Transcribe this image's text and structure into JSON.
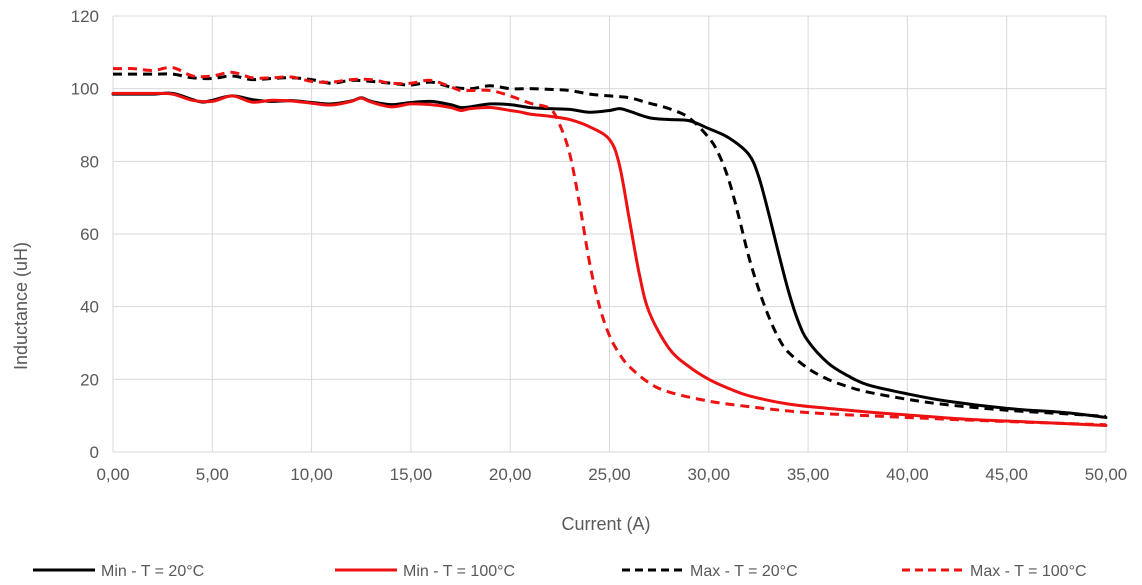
{
  "chart_data": {
    "type": "line",
    "xlabel": "Current (A)",
    "ylabel": "Inductance (uH)",
    "xlim": [
      0,
      50
    ],
    "ylim": [
      0,
      120
    ],
    "x_ticks": [
      0,
      5,
      10,
      15,
      20,
      25,
      30,
      35,
      40,
      45,
      50
    ],
    "x_tick_labels": [
      "0,00",
      "5,00",
      "10,00",
      "15,00",
      "20,00",
      "25,00",
      "30,00",
      "35,00",
      "40,00",
      "45,00",
      "50,00"
    ],
    "y_ticks": [
      0,
      20,
      40,
      60,
      80,
      100,
      120
    ],
    "y_tick_labels": [
      "0",
      "20",
      "40",
      "60",
      "80",
      "100",
      "120"
    ],
    "grid": true,
    "legend_position": "bottom",
    "series": [
      {
        "name": "Min - T = 20°C",
        "color": "#000000",
        "dash": "solid",
        "points": [
          [
            0,
            98.5
          ],
          [
            1,
            98.5
          ],
          [
            2,
            98.5
          ],
          [
            3,
            98.7
          ],
          [
            4,
            97.0
          ],
          [
            4.5,
            96.3
          ],
          [
            5,
            96.8
          ],
          [
            6,
            98.0
          ],
          [
            7,
            97.0
          ],
          [
            8,
            96.5
          ],
          [
            9,
            96.7
          ],
          [
            10,
            96.2
          ],
          [
            11,
            95.8
          ],
          [
            12,
            96.6
          ],
          [
            12.5,
            97.5
          ],
          [
            13,
            96.5
          ],
          [
            14,
            95.6
          ],
          [
            15,
            96.2
          ],
          [
            16,
            96.5
          ],
          [
            17,
            95.6
          ],
          [
            17.5,
            94.8
          ],
          [
            18,
            95.0
          ],
          [
            19,
            95.8
          ],
          [
            20,
            95.6
          ],
          [
            21,
            94.8
          ],
          [
            22,
            94.5
          ],
          [
            23,
            94.3
          ],
          [
            24,
            93.5
          ],
          [
            25,
            94.0
          ],
          [
            25.5,
            94.5
          ],
          [
            26,
            93.8
          ],
          [
            27,
            92.0
          ],
          [
            28,
            91.5
          ],
          [
            29,
            91.2
          ],
          [
            30,
            89.0
          ],
          [
            31,
            86.5
          ],
          [
            32,
            82.0
          ],
          [
            32.5,
            76.0
          ],
          [
            33,
            66.0
          ],
          [
            33.5,
            55.0
          ],
          [
            34,
            44.5
          ],
          [
            34.5,
            36.0
          ],
          [
            35,
            30.5
          ],
          [
            36,
            24.5
          ],
          [
            37,
            21.0
          ],
          [
            38,
            18.5
          ],
          [
            40,
            16.0
          ],
          [
            42,
            14.0
          ],
          [
            45,
            12.0
          ],
          [
            48,
            10.8
          ],
          [
            50,
            9.5
          ]
        ]
      },
      {
        "name": "Min - T = 100°C",
        "color": "#ee1111",
        "dash": "solid",
        "points": [
          [
            0,
            98.7
          ],
          [
            1,
            98.7
          ],
          [
            2,
            98.7
          ],
          [
            3,
            98.5
          ],
          [
            4,
            96.8
          ],
          [
            5,
            96.5
          ],
          [
            6,
            98.0
          ],
          [
            7,
            96.3
          ],
          [
            8,
            96.8
          ],
          [
            9,
            96.6
          ],
          [
            10,
            96.0
          ],
          [
            11,
            95.5
          ],
          [
            12,
            96.5
          ],
          [
            12.5,
            97.4
          ],
          [
            13,
            96.3
          ],
          [
            14,
            95.0
          ],
          [
            15,
            95.8
          ],
          [
            16,
            95.6
          ],
          [
            17,
            94.8
          ],
          [
            17.5,
            94.0
          ],
          [
            18,
            94.5
          ],
          [
            19,
            94.8
          ],
          [
            20,
            94.0
          ],
          [
            20.5,
            93.6
          ],
          [
            21,
            93.0
          ],
          [
            22,
            92.4
          ],
          [
            23,
            91.5
          ],
          [
            24,
            89.5
          ],
          [
            25,
            86.0
          ],
          [
            25.5,
            79.0
          ],
          [
            26,
            64.0
          ],
          [
            26.5,
            49.0
          ],
          [
            27,
            38.5
          ],
          [
            28,
            28.5
          ],
          [
            29,
            23.5
          ],
          [
            30,
            20.0
          ],
          [
            31,
            17.5
          ],
          [
            32,
            15.5
          ],
          [
            34,
            13.2
          ],
          [
            36,
            12.0
          ],
          [
            38,
            11.0
          ],
          [
            40,
            10.2
          ],
          [
            43,
            9.0
          ],
          [
            46,
            8.3
          ],
          [
            50,
            7.3
          ]
        ]
      },
      {
        "name": "Max - T = 20°C",
        "color": "#000000",
        "dash": "dashed",
        "points": [
          [
            0,
            104.0
          ],
          [
            2,
            104.0
          ],
          [
            3,
            104.0
          ],
          [
            4,
            103.0
          ],
          [
            5,
            102.8
          ],
          [
            6,
            103.5
          ],
          [
            7,
            102.5
          ],
          [
            8,
            102.8
          ],
          [
            9,
            103.0
          ],
          [
            10,
            102.5
          ],
          [
            11,
            101.5
          ],
          [
            12,
            102.3
          ],
          [
            13,
            102.0
          ],
          [
            14,
            101.5
          ],
          [
            15,
            101.0
          ],
          [
            16,
            101.8
          ],
          [
            17,
            100.5
          ],
          [
            18,
            100.0
          ],
          [
            19,
            100.8
          ],
          [
            20,
            100.0
          ],
          [
            21,
            100.0
          ],
          [
            22,
            99.8
          ],
          [
            23,
            99.5
          ],
          [
            24,
            98.5
          ],
          [
            25,
            98.0
          ],
          [
            26,
            97.5
          ],
          [
            27,
            96.0
          ],
          [
            28,
            94.5
          ],
          [
            29,
            92.0
          ],
          [
            30,
            86.5
          ],
          [
            30.5,
            82.0
          ],
          [
            31,
            75.0
          ],
          [
            31.5,
            65.0
          ],
          [
            32,
            54.0
          ],
          [
            32.5,
            45.0
          ],
          [
            33,
            37.5
          ],
          [
            33.5,
            31.5
          ],
          [
            34,
            27.5
          ],
          [
            35,
            23.0
          ],
          [
            36,
            20.0
          ],
          [
            37,
            18.0
          ],
          [
            38,
            16.5
          ],
          [
            40,
            14.5
          ],
          [
            42,
            13.0
          ],
          [
            45,
            11.5
          ],
          [
            48,
            10.5
          ],
          [
            50,
            9.8
          ]
        ]
      },
      {
        "name": "Max - T = 100°C",
        "color": "#ee1111",
        "dash": "dashed",
        "points": [
          [
            0,
            105.5
          ],
          [
            1,
            105.5
          ],
          [
            2,
            105.0
          ],
          [
            3,
            105.8
          ],
          [
            4,
            103.5
          ],
          [
            5,
            103.5
          ],
          [
            6,
            104.5
          ],
          [
            7,
            103.0
          ],
          [
            8,
            103.0
          ],
          [
            9,
            103.2
          ],
          [
            10,
            102.0
          ],
          [
            11,
            101.8
          ],
          [
            12,
            102.5
          ],
          [
            13,
            102.5
          ],
          [
            14,
            101.5
          ],
          [
            15,
            101.5
          ],
          [
            16,
            102.3
          ],
          [
            17,
            100.5
          ],
          [
            17.5,
            99.5
          ],
          [
            18,
            99.5
          ],
          [
            19,
            99.5
          ],
          [
            20,
            98.0
          ],
          [
            21,
            96.0
          ],
          [
            22,
            94.5
          ],
          [
            22.5,
            90.0
          ],
          [
            23,
            82.0
          ],
          [
            23.5,
            68.0
          ],
          [
            24,
            52.0
          ],
          [
            24.5,
            40.0
          ],
          [
            25,
            32.0
          ],
          [
            25.5,
            27.0
          ],
          [
            26,
            23.5
          ],
          [
            27,
            19.0
          ],
          [
            28,
            16.5
          ],
          [
            30,
            14.0
          ],
          [
            32,
            12.5
          ],
          [
            34,
            11.3
          ],
          [
            36,
            10.5
          ],
          [
            38,
            10.0
          ],
          [
            40,
            9.5
          ],
          [
            43,
            8.8
          ],
          [
            46,
            8.2
          ],
          [
            50,
            7.5
          ]
        ]
      }
    ]
  }
}
